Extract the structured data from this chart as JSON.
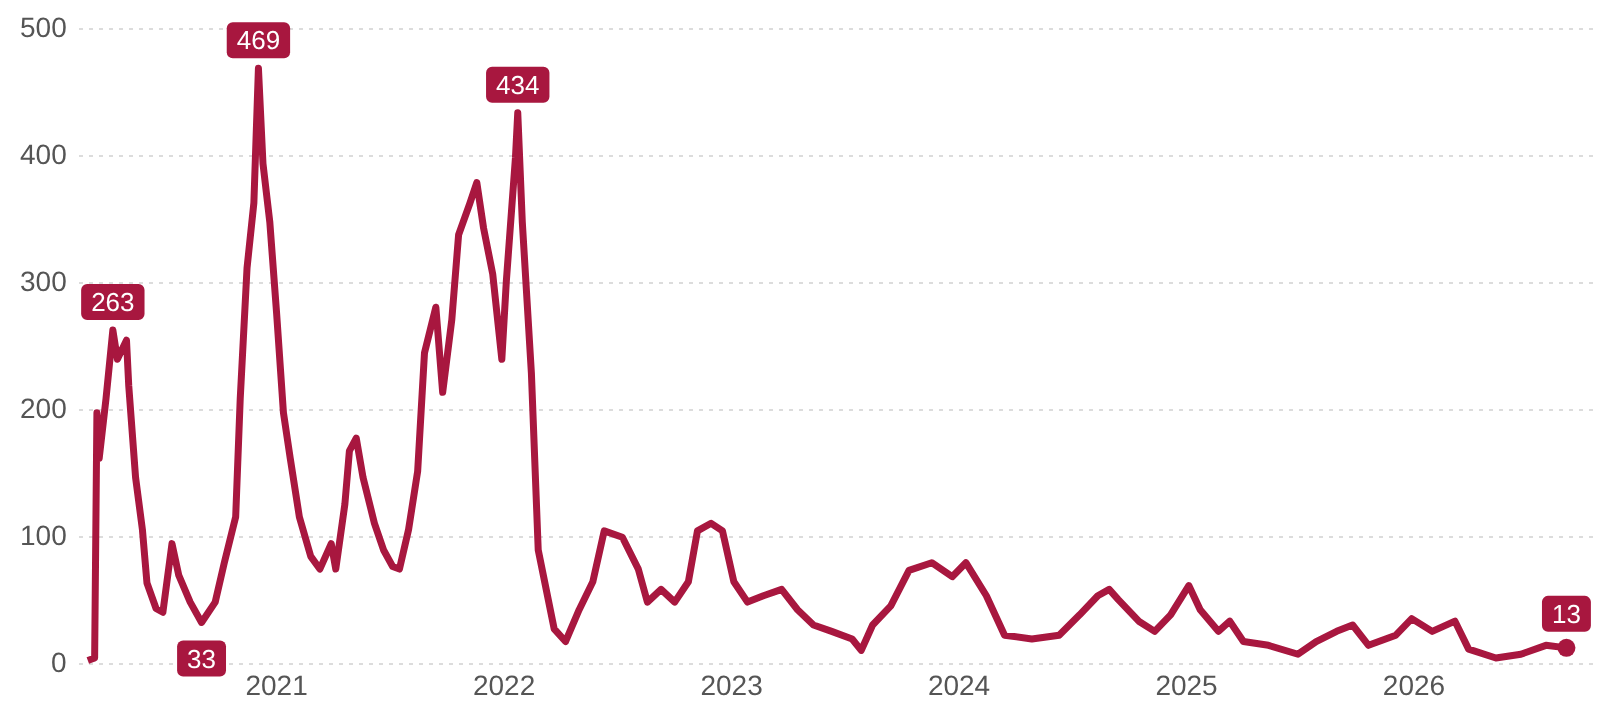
{
  "chart_data": {
    "type": "line",
    "x": [
      2020.17,
      2020.2,
      2020.21,
      2020.22,
      2020.25,
      2020.28,
      2020.3,
      2020.34,
      2020.35,
      2020.38,
      2020.41,
      2020.43,
      2020.47,
      2020.5,
      2020.54,
      2020.57,
      2020.62,
      2020.67,
      2020.73,
      2020.77,
      2020.82,
      2020.84,
      2020.87,
      2020.9,
      2020.92,
      2020.94,
      2020.97,
      2021.0,
      2021.03,
      2021.06,
      2021.1,
      2021.15,
      2021.19,
      2021.24,
      2021.26,
      2021.3,
      2021.32,
      2021.35,
      2021.38,
      2021.43,
      2021.47,
      2021.51,
      2021.54,
      2021.58,
      2021.62,
      2021.65,
      2021.7,
      2021.73,
      2021.77,
      2021.8,
      2021.85,
      2021.88,
      2021.91,
      2021.95,
      2021.99,
      2022.01,
      2022.05,
      2022.06,
      2022.08,
      2022.12,
      2022.15,
      2022.22,
      2022.27,
      2022.33,
      2022.39,
      2022.44,
      2022.52,
      2022.59,
      2022.63,
      2022.69,
      2022.75,
      2022.81,
      2022.85,
      2022.91,
      2022.96,
      2023.01,
      2023.07,
      2023.14,
      2023.22,
      2023.29,
      2023.36,
      2023.44,
      2023.53,
      2023.57,
      2023.62,
      2023.7,
      2023.78,
      2023.88,
      2023.97,
      2024.03,
      2024.12,
      2024.2,
      2024.32,
      2024.44,
      2024.53,
      2024.61,
      2024.66,
      2024.7,
      2024.79,
      2024.86,
      2024.93,
      2025.01,
      2025.06,
      2025.14,
      2025.19,
      2025.25,
      2025.36,
      2025.49,
      2025.57,
      2025.66,
      2025.73,
      2025.8,
      2025.92,
      2025.99,
      2026.08,
      2026.18,
      2026.24,
      2026.36,
      2026.47,
      2026.58,
      2026.67
    ],
    "series": [
      {
        "color": "#a8173f",
        "values": [
          3,
          5,
          198,
          162,
          209,
          263,
          240,
          255,
          219,
          147,
          106,
          64,
          44,
          41,
          95,
          70,
          49,
          33,
          49,
          80,
          116,
          209,
          312,
          363,
          469,
          394,
          348,
          276,
          198,
          162,
          116,
          85,
          75,
          95,
          75,
          126,
          168,
          178,
          147,
          111,
          90,
          77,
          75,
          106,
          152,
          245,
          281,
          214,
          271,
          338,
          363,
          379,
          343,
          307,
          240,
          302,
          399,
          434,
          348,
          229,
          90,
          28,
          18,
          43,
          65,
          105,
          100,
          75,
          49,
          59,
          49,
          65,
          105,
          111,
          105,
          65,
          49,
          54,
          59,
          43,
          31,
          26,
          20,
          11,
          31,
          46,
          74,
          80,
          69,
          80,
          54,
          23,
          20,
          23,
          39,
          54,
          59,
          51,
          34,
          26,
          39,
          62,
          43,
          26,
          34,
          18,
          15,
          8,
          18,
          26,
          31,
          15,
          23,
          36,
          26,
          34,
          12,
          5,
          8,
          15,
          13
        ],
        "value_labels": [
          null,
          null,
          null,
          null,
          null,
          "263",
          null,
          null,
          null,
          null,
          null,
          null,
          null,
          null,
          null,
          null,
          null,
          "33",
          null,
          null,
          null,
          null,
          null,
          null,
          "469",
          null,
          null,
          null,
          null,
          null,
          null,
          null,
          null,
          null,
          null,
          null,
          null,
          null,
          null,
          null,
          null,
          null,
          null,
          null,
          null,
          null,
          null,
          null,
          null,
          null,
          null,
          null,
          null,
          null,
          null,
          null,
          null,
          "434",
          null,
          null,
          null,
          null,
          null,
          null,
          null,
          null,
          null,
          null,
          null,
          null,
          null,
          null,
          null,
          null,
          null,
          null,
          null,
          null,
          null,
          null,
          null,
          null,
          null,
          null,
          null,
          null,
          null,
          null,
          null,
          null,
          null,
          null,
          null,
          null,
          null,
          null,
          null,
          null,
          null,
          null,
          null,
          null,
          null,
          null,
          null,
          null,
          null,
          null,
          null,
          null,
          null,
          null,
          null,
          null,
          null,
          null,
          null,
          null,
          null,
          null,
          "13"
        ]
      }
    ],
    "xlim": [
      2020.13,
      2026.8
    ],
    "xticks": [
      2021,
      2022,
      2023,
      2024,
      2025,
      2026
    ],
    "ylim": [
      0,
      500
    ],
    "yticks": [
      0,
      100,
      200,
      300,
      400,
      500
    ],
    "grid": "y",
    "legend": false
  }
}
